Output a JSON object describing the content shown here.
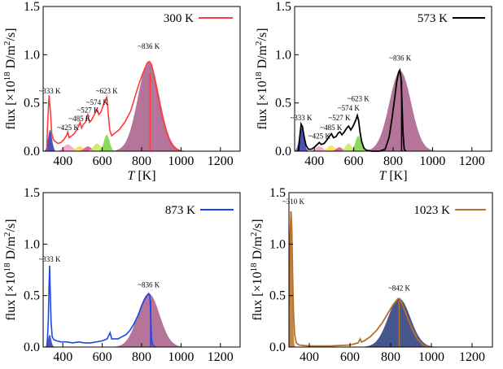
{
  "figure_domain": "Chart",
  "chart_data": [
    {
      "id": "300K",
      "type": "area",
      "legend_label": "300 K",
      "legend_color": "#ff3b3b",
      "xlabel_var": "T",
      "xlabel_unit": " [K]",
      "ylabel_prefix": "flux [×10",
      "ylabel_exp": "18",
      "ylabel_suffix": " D/m",
      "ylabel_sup2": "2",
      "ylabel_end": "/s]",
      "xlim": [
        300,
        1300
      ],
      "ylim": [
        0,
        1.5
      ],
      "x_ticks": [
        400,
        600,
        800,
        1000,
        1200
      ],
      "y_ticks": [
        0.0,
        0.5,
        1.0,
        1.5
      ],
      "y_tick_labels": [
        "0.0",
        "0.5",
        "1.0",
        "1.5"
      ],
      "line_color": "#ff3b3b",
      "fill_peaks": [
        {
          "center": 335,
          "sigma": 10,
          "height": 0.22,
          "color": "#2d35a8"
        },
        {
          "center": 425,
          "sigma": 22,
          "height": 0.07,
          "color": "#f59abf"
        },
        {
          "center": 485,
          "sigma": 20,
          "height": 0.05,
          "color": "#ffd84a"
        },
        {
          "center": 527,
          "sigma": 18,
          "height": 0.05,
          "color": "#e04b8a"
        },
        {
          "center": 574,
          "sigma": 18,
          "height": 0.08,
          "color": "#c7e85a"
        },
        {
          "center": 623,
          "sigma": 14,
          "height": 0.17,
          "color": "#78d43c"
        },
        {
          "center": 836,
          "sigma": 55,
          "height": 0.92,
          "color": "#a85c88"
        }
      ],
      "line_points": [
        [
          318,
          0
        ],
        [
          323,
          0.3
        ],
        [
          330,
          0.58
        ],
        [
          337,
          0.4
        ],
        [
          344,
          0.18
        ],
        [
          352,
          0.12
        ],
        [
          362,
          0.1
        ],
        [
          375,
          0.08
        ],
        [
          390,
          0.09
        ],
        [
          405,
          0.12
        ],
        [
          418,
          0.16
        ],
        [
          425,
          0.2
        ],
        [
          432,
          0.14
        ],
        [
          445,
          0.16
        ],
        [
          458,
          0.18
        ],
        [
          470,
          0.22
        ],
        [
          480,
          0.26
        ],
        [
          487,
          0.3
        ],
        [
          495,
          0.24
        ],
        [
          505,
          0.28
        ],
        [
          515,
          0.3
        ],
        [
          522,
          0.36
        ],
        [
          527,
          0.38
        ],
        [
          535,
          0.3
        ],
        [
          545,
          0.32
        ],
        [
          555,
          0.36
        ],
        [
          565,
          0.4
        ],
        [
          574,
          0.44
        ],
        [
          582,
          0.38
        ],
        [
          592,
          0.4
        ],
        [
          603,
          0.46
        ],
        [
          613,
          0.52
        ],
        [
          623,
          0.56
        ],
        [
          630,
          0.4
        ],
        [
          638,
          0.22
        ],
        [
          648,
          0.16
        ],
        [
          660,
          0.18
        ],
        [
          672,
          0.2
        ],
        [
          685,
          0.22
        ],
        [
          700,
          0.26
        ],
        [
          715,
          0.3
        ],
        [
          730,
          0.36
        ],
        [
          745,
          0.42
        ],
        [
          760,
          0.52
        ],
        [
          775,
          0.62
        ],
        [
          790,
          0.72
        ],
        [
          805,
          0.8
        ],
        [
          818,
          0.87
        ],
        [
          830,
          0.92
        ],
        [
          840,
          0.93
        ],
        [
          850,
          0.9
        ],
        [
          862,
          0.8
        ],
        [
          875,
          0.66
        ],
        [
          890,
          0.5
        ],
        [
          905,
          0.36
        ],
        [
          920,
          0.24
        ],
        [
          940,
          0.12
        ],
        [
          960,
          0.05
        ],
        [
          985,
          0.01
        ],
        [
          1010,
          0
        ]
      ],
      "vertical_marker_x": 843,
      "peak_labels": [
        {
          "text": "~333 K",
          "x": 333,
          "y": 0.6
        },
        {
          "text": "~425 K",
          "x": 425,
          "y": 0.22
        },
        {
          "text": "~485 K",
          "x": 485,
          "y": 0.31
        },
        {
          "text": "~527 K",
          "x": 527,
          "y": 0.4
        },
        {
          "text": "~574 K",
          "x": 574,
          "y": 0.48
        },
        {
          "text": "~623 K",
          "x": 623,
          "y": 0.6
        },
        {
          "text": "~836 K",
          "x": 836,
          "y": 1.06
        }
      ]
    },
    {
      "id": "573K",
      "type": "area",
      "legend_label": "573 K",
      "legend_color": "#000000",
      "xlabel_var": "T",
      "xlabel_unit": " [K]",
      "ylabel_prefix": "flux [×10",
      "ylabel_exp": "18",
      "ylabel_suffix": " D/m",
      "ylabel_sup2": "2",
      "ylabel_end": "/s]",
      "xlim": [
        300,
        1300
      ],
      "ylim": [
        0,
        1.5
      ],
      "x_ticks": [
        400,
        600,
        800,
        1000,
        1200
      ],
      "y_ticks": [
        0.0,
        0.5,
        1.0,
        1.5
      ],
      "y_tick_labels": [
        "0.0",
        "0.5",
        "1.0",
        "1.5"
      ],
      "line_color": "#000000",
      "fill_peaks": [
        {
          "center": 335,
          "sigma": 12,
          "height": 0.24,
          "color": "#2d35a8"
        },
        {
          "center": 425,
          "sigma": 18,
          "height": 0.05,
          "color": "#f59abf"
        },
        {
          "center": 485,
          "sigma": 18,
          "height": 0.06,
          "color": "#ffd84a"
        },
        {
          "center": 527,
          "sigma": 16,
          "height": 0.04,
          "color": "#e04b8a"
        },
        {
          "center": 574,
          "sigma": 16,
          "height": 0.08,
          "color": "#c7e85a"
        },
        {
          "center": 623,
          "sigma": 14,
          "height": 0.16,
          "color": "#78d43c"
        },
        {
          "center": 836,
          "sigma": 55,
          "height": 0.83,
          "color": "#a85c88"
        }
      ],
      "line_points": [
        [
          320,
          0
        ],
        [
          326,
          0.15
        ],
        [
          333,
          0.28
        ],
        [
          340,
          0.25
        ],
        [
          348,
          0.15
        ],
        [
          358,
          0.06
        ],
        [
          370,
          0.02
        ],
        [
          385,
          0.02
        ],
        [
          400,
          0.04
        ],
        [
          415,
          0.07
        ],
        [
          425,
          0.09
        ],
        [
          435,
          0.07
        ],
        [
          450,
          0.08
        ],
        [
          465,
          0.12
        ],
        [
          478,
          0.16
        ],
        [
          487,
          0.18
        ],
        [
          497,
          0.14
        ],
        [
          510,
          0.15
        ],
        [
          522,
          0.19
        ],
        [
          530,
          0.2
        ],
        [
          540,
          0.17
        ],
        [
          552,
          0.2
        ],
        [
          565,
          0.24
        ],
        [
          574,
          0.26
        ],
        [
          585,
          0.22
        ],
        [
          597,
          0.26
        ],
        [
          610,
          0.32
        ],
        [
          618,
          0.37
        ],
        [
          625,
          0.32
        ],
        [
          632,
          0.2
        ],
        [
          640,
          0.1
        ],
        [
          652,
          0.03
        ],
        [
          665,
          0.01
        ],
        [
          690,
          0
        ],
        [
          730,
          0
        ],
        [
          760,
          0.02
        ],
        [
          780,
          0.15
        ],
        [
          795,
          0.35
        ],
        [
          808,
          0.55
        ],
        [
          818,
          0.72
        ],
        [
          828,
          0.82
        ],
        [
          834,
          0.84
        ],
        [
          840,
          0.76
        ],
        [
          845,
          0.5
        ],
        [
          850,
          0.2
        ],
        [
          856,
          0.02
        ],
        [
          865,
          0
        ]
      ],
      "vertical_marker_x": 843,
      "peak_labels": [
        {
          "text": "~333 K",
          "x": 333,
          "y": 0.32
        },
        {
          "text": "~425 K",
          "x": 425,
          "y": 0.13
        },
        {
          "text": "~485 K",
          "x": 485,
          "y": 0.22
        },
        {
          "text": "~527 K",
          "x": 527,
          "y": 0.32
        },
        {
          "text": "~574 K",
          "x": 574,
          "y": 0.42
        },
        {
          "text": "~623 K",
          "x": 623,
          "y": 0.52
        },
        {
          "text": "~836 K",
          "x": 836,
          "y": 0.94
        }
      ]
    },
    {
      "id": "873K",
      "type": "area",
      "legend_label": "873 K",
      "legend_color": "#1c46e8",
      "xlabel_var": "T",
      "xlabel_unit": " [K]",
      "ylabel_prefix": "flux [×10",
      "ylabel_exp": "18",
      "ylabel_suffix": " D/m",
      "ylabel_sup2": "2",
      "ylabel_end": "/s]",
      "xlim": [
        300,
        1300
      ],
      "ylim": [
        0,
        1.5
      ],
      "x_ticks": [
        400,
        600,
        800,
        1000,
        1200
      ],
      "y_ticks": [
        0.0,
        0.5,
        1.0,
        1.5
      ],
      "y_tick_labels": [
        "0.0",
        "0.5",
        "1.0",
        "1.5"
      ],
      "line_color": "#1c46e8",
      "fill_peaks": [
        {
          "center": 333,
          "sigma": 8,
          "height": 0.12,
          "color": "#2d35a8"
        },
        {
          "center": 836,
          "sigma": 55,
          "height": 0.52,
          "color": "#a85c88"
        }
      ],
      "line_points": [
        [
          318,
          0
        ],
        [
          322,
          0.08
        ],
        [
          326,
          0.25
        ],
        [
          330,
          0.6
        ],
        [
          333,
          0.79
        ],
        [
          336,
          0.55
        ],
        [
          340,
          0.25
        ],
        [
          346,
          0.1
        ],
        [
          355,
          0.07
        ],
        [
          370,
          0.06
        ],
        [
          390,
          0.05
        ],
        [
          420,
          0.05
        ],
        [
          450,
          0.04
        ],
        [
          480,
          0.05
        ],
        [
          510,
          0.04
        ],
        [
          540,
          0.04
        ],
        [
          570,
          0.05
        ],
        [
          600,
          0.06
        ],
        [
          625,
          0.08
        ],
        [
          640,
          0.14
        ],
        [
          648,
          0.08
        ],
        [
          660,
          0.08
        ],
        [
          680,
          0.08
        ],
        [
          700,
          0.1
        ],
        [
          720,
          0.12
        ],
        [
          740,
          0.16
        ],
        [
          760,
          0.22
        ],
        [
          780,
          0.3
        ],
        [
          800,
          0.4
        ],
        [
          815,
          0.46
        ],
        [
          828,
          0.5
        ],
        [
          836,
          0.52
        ],
        [
          842,
          0.5
        ],
        [
          846,
          0.3
        ],
        [
          850,
          0.08
        ],
        [
          856,
          0.02
        ],
        [
          870,
          0
        ]
      ],
      "vertical_marker_x": 846,
      "peak_labels": [
        {
          "text": "~333 K",
          "x": 333,
          "y": 0.83
        },
        {
          "text": "~836 K",
          "x": 836,
          "y": 0.58
        }
      ]
    },
    {
      "id": "1023K",
      "type": "area",
      "legend_label": "1023 K",
      "legend_color": "#b8702a",
      "xlabel_var": "T",
      "xlabel_unit": " [K]",
      "ylabel_prefix": "flux [×10",
      "ylabel_exp": "18",
      "ylabel_suffix": " D/m",
      "ylabel_sup2": "2",
      "ylabel_end": "/s]",
      "xlim": [
        300,
        1300
      ],
      "ylim": [
        0,
        1.5
      ],
      "x_ticks": [
        400,
        600,
        800,
        1000,
        1200
      ],
      "y_ticks": [
        0.0,
        0.5,
        1.0,
        1.5
      ],
      "y_tick_labels": [
        "0.0",
        "0.5",
        "1.0",
        "1.5"
      ],
      "line_color": "#b8702a",
      "fill_peaks": [
        {
          "center": 310,
          "sigma": 6,
          "height": 1.3,
          "color": "#b8702a"
        },
        {
          "center": 842,
          "sigma": 55,
          "height": 0.47,
          "color": "#263a7a"
        }
      ],
      "line_points": [
        [
          302,
          0.4
        ],
        [
          306,
          1.1
        ],
        [
          310,
          1.32
        ],
        [
          314,
          1.15
        ],
        [
          318,
          0.7
        ],
        [
          322,
          0.35
        ],
        [
          328,
          0.12
        ],
        [
          336,
          0.04
        ],
        [
          350,
          0.02
        ],
        [
          400,
          0.01
        ],
        [
          500,
          0.01
        ],
        [
          600,
          0.02
        ],
        [
          640,
          0.04
        ],
        [
          650,
          0.08
        ],
        [
          656,
          0.05
        ],
        [
          670,
          0.06
        ],
        [
          700,
          0.1
        ],
        [
          730,
          0.16
        ],
        [
          760,
          0.24
        ],
        [
          790,
          0.34
        ],
        [
          815,
          0.42
        ],
        [
          835,
          0.47
        ],
        [
          845,
          0.47
        ],
        [
          860,
          0.4
        ],
        [
          880,
          0.3
        ],
        [
          900,
          0.2
        ],
        [
          930,
          0.08
        ],
        [
          960,
          0.02
        ],
        [
          990,
          0
        ]
      ],
      "vertical_marker_x": 842,
      "peak_labels": [
        {
          "text": "~310 K",
          "x": 322,
          "y": 1.39
        },
        {
          "text": "~842 K",
          "x": 842,
          "y": 0.55
        }
      ]
    }
  ]
}
